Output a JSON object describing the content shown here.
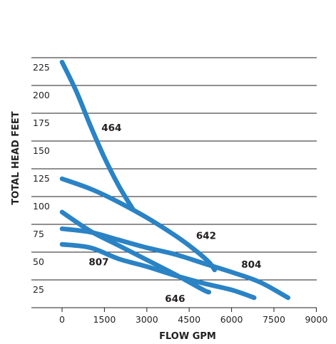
{
  "chart_data": {
    "type": "line",
    "title": "",
    "xlabel": "FLOW GPM",
    "ylabel": "TOTAL HEAD FEET",
    "xlim": [
      0,
      9000
    ],
    "ylim": [
      0,
      225
    ],
    "x_ticks": [
      "0",
      "1500",
      "3000",
      "4500",
      "6000",
      "7500",
      "9000"
    ],
    "y_ticks": [
      "225",
      "200",
      "175",
      "150",
      "125",
      "100",
      "75",
      "50",
      "25"
    ],
    "grid": "horizontal",
    "legend": "none",
    "line_color": "#2a83c5",
    "series": [
      {
        "name": "464",
        "x": [
          0,
          500,
          1000,
          1500,
          2000,
          2500
        ],
        "y": [
          221,
          195,
          164,
          135,
          110,
          89
        ]
      },
      {
        "name": "642",
        "x": [
          0,
          1000,
          2000,
          3000,
          4000,
          4700,
          5200,
          5400
        ],
        "y": [
          116,
          107,
          95,
          81,
          65,
          52,
          41,
          34
        ]
      },
      {
        "name": "804",
        "x": [
          0,
          1000,
          2000,
          3000,
          4000,
          5000,
          6000,
          7000,
          8000
        ],
        "y": [
          71,
          68,
          61,
          54,
          48,
          40,
          32,
          23,
          9
        ]
      },
      {
        "name": "807",
        "x": [
          0,
          1000,
          2000,
          3000,
          4000,
          5000,
          5200
        ],
        "y": [
          86,
          69,
          56,
          43,
          30,
          16,
          14
        ]
      },
      {
        "name": "646",
        "x": [
          0,
          1000,
          2000,
          3000,
          4000,
          5000,
          6000,
          6800
        ],
        "y": [
          57,
          54,
          44,
          37,
          29,
          22,
          16,
          9
        ]
      }
    ],
    "annotations": [
      {
        "text": "464",
        "series": "464",
        "x": 1750,
        "y": 159
      },
      {
        "text": "642",
        "series": "642",
        "x": 5100,
        "y": 62
      },
      {
        "text": "804",
        "series": "804",
        "x": 6700,
        "y": 36
      },
      {
        "text": "807",
        "series": "807",
        "x": 1300,
        "y": 38
      },
      {
        "text": "646",
        "series": "646",
        "x": 4000,
        "y": 5
      }
    ]
  }
}
